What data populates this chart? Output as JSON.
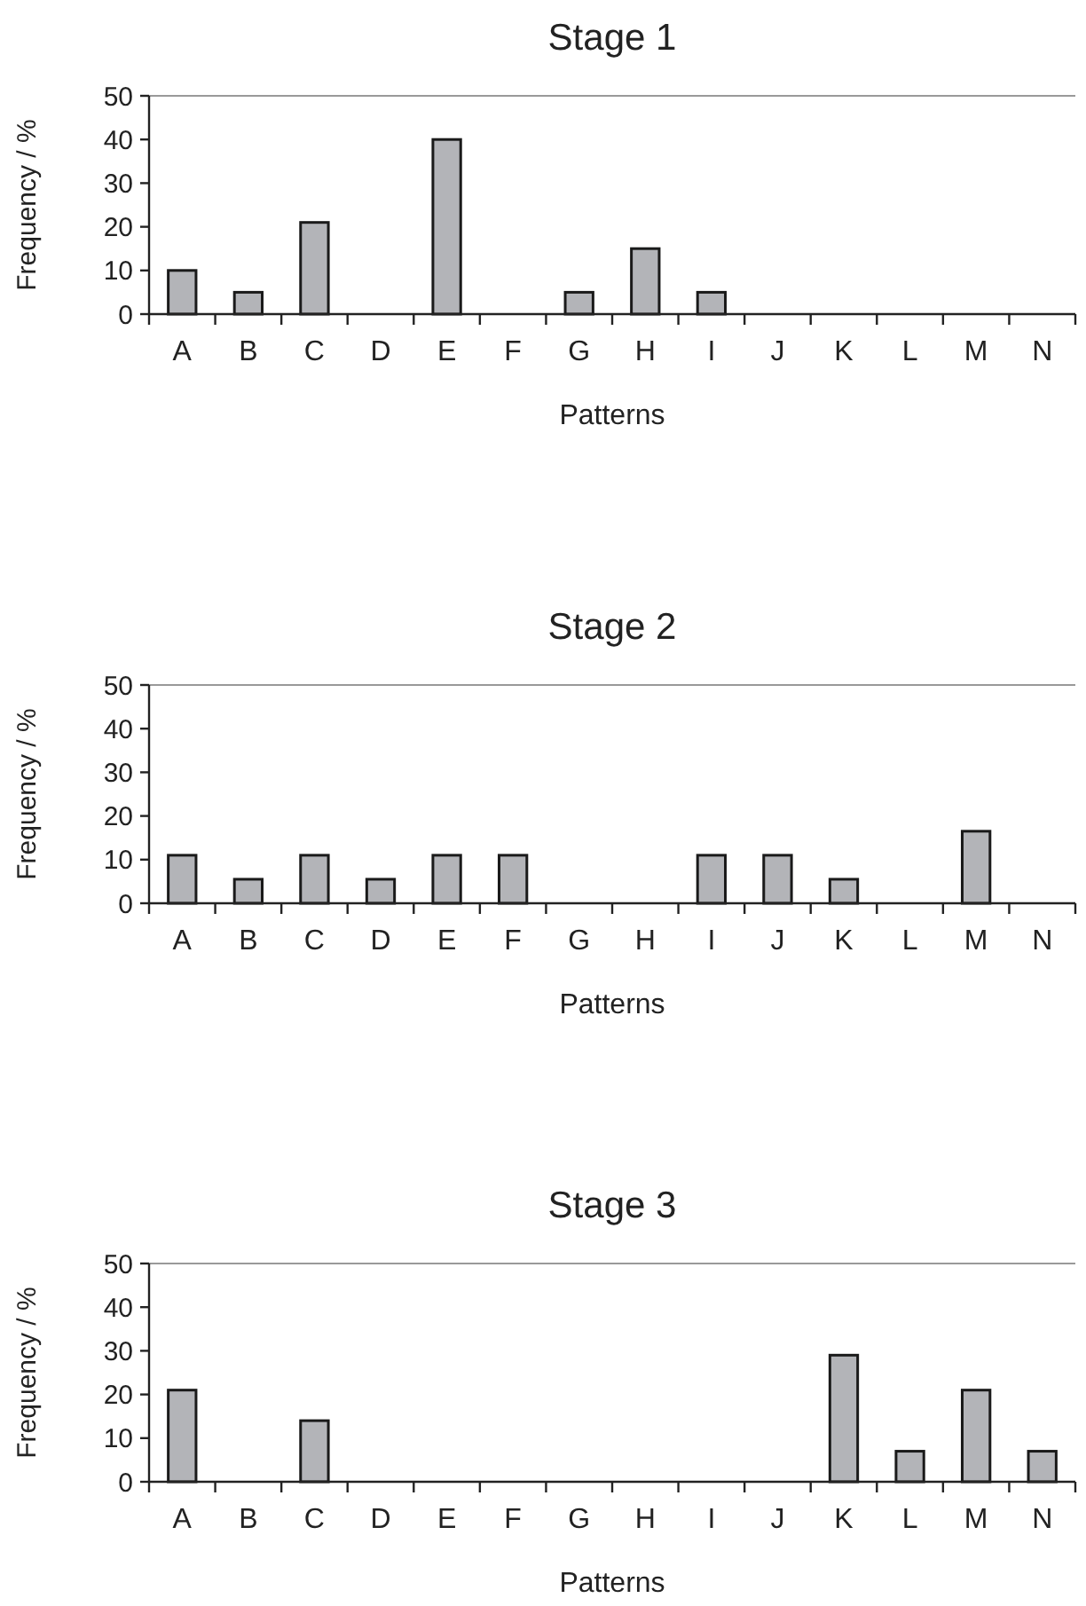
{
  "chart_data": [
    {
      "type": "bar",
      "title": "Stage 1",
      "xlabel": "Patterns",
      "ylabel": "Frequency / %",
      "categories": [
        "A",
        "B",
        "C",
        "D",
        "E",
        "F",
        "G",
        "H",
        "I",
        "J",
        "K",
        "L",
        "M",
        "N"
      ],
      "values": [
        10,
        5,
        21,
        0,
        40,
        0,
        5,
        15,
        5,
        0,
        0,
        0,
        0,
        0
      ],
      "color": "#b3b4b8",
      "ylim": [
        0,
        50
      ],
      "yticks": [
        0,
        10,
        20,
        30,
        40,
        50
      ],
      "grid": false
    },
    {
      "type": "bar",
      "title": "Stage 2",
      "xlabel": "Patterns",
      "ylabel": "Frequency / %",
      "categories": [
        "A",
        "B",
        "C",
        "D",
        "E",
        "F",
        "G",
        "H",
        "I",
        "J",
        "K",
        "L",
        "M",
        "N"
      ],
      "values": [
        11,
        5.5,
        11,
        5.5,
        11,
        11,
        0,
        0,
        11,
        11,
        5.5,
        0,
        16.5,
        0
      ],
      "color": "#b3b4b8",
      "ylim": [
        0,
        50
      ],
      "yticks": [
        0,
        10,
        20,
        30,
        40,
        50
      ],
      "grid": false
    },
    {
      "type": "bar",
      "title": "Stage 3",
      "xlabel": "Patterns",
      "ylabel": "Frequency / %",
      "categories": [
        "A",
        "B",
        "C",
        "D",
        "E",
        "F",
        "G",
        "H",
        "I",
        "J",
        "K",
        "L",
        "M",
        "N"
      ],
      "values": [
        21,
        0,
        14,
        0,
        0,
        0,
        0,
        0,
        0,
        0,
        29,
        7,
        21,
        7
      ],
      "color": "#b3b4b8",
      "ylim": [
        0,
        50
      ],
      "yticks": [
        0,
        10,
        20,
        30,
        40,
        50
      ],
      "grid": false
    }
  ]
}
